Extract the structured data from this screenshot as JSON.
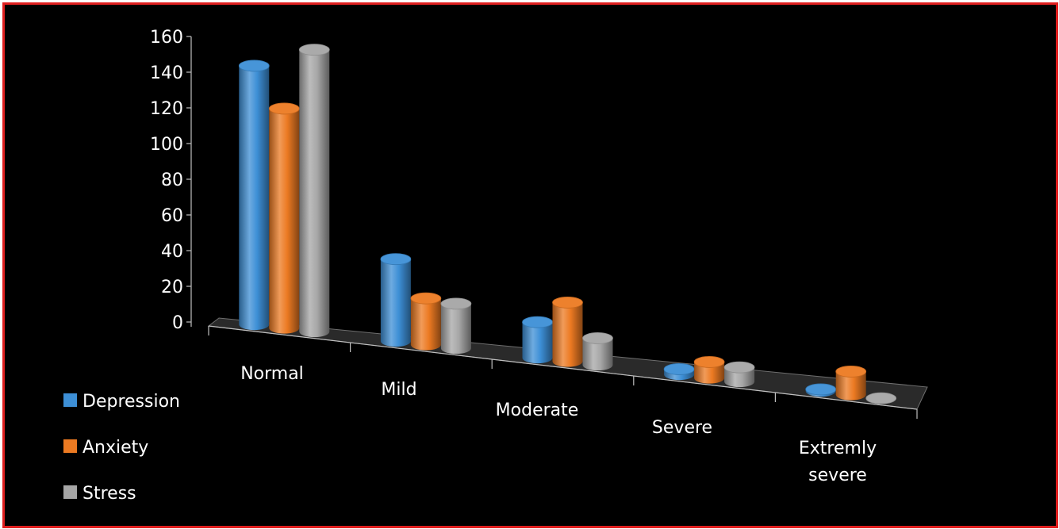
{
  "chart_data": {
    "type": "bar",
    "title": "",
    "xlabel": "",
    "ylabel": "",
    "categories": [
      "Normal",
      "Mild",
      "Moderate",
      "Severe",
      "Extremly severe"
    ],
    "series": [
      {
        "name": "Depression",
        "values": [
          145,
          46,
          20,
          3,
          1
        ]
      },
      {
        "name": "Anxiety",
        "values": [
          123,
          26,
          33,
          9,
          13
        ]
      },
      {
        "name": "Stress",
        "values": [
          158,
          25,
          15,
          8,
          0
        ]
      }
    ],
    "yticks": [
      0,
      20,
      40,
      60,
      80,
      100,
      120,
      140,
      160
    ],
    "ylim": [
      0,
      160
    ],
    "legend_position": "bottom-left",
    "style": "3d-cylinder",
    "colors": {
      "Depression": "#3d8fd6",
      "Anxiety": "#ec7a22",
      "Stress": "#a6a6a6",
      "background": "#000000",
      "border": "#e02020"
    }
  }
}
